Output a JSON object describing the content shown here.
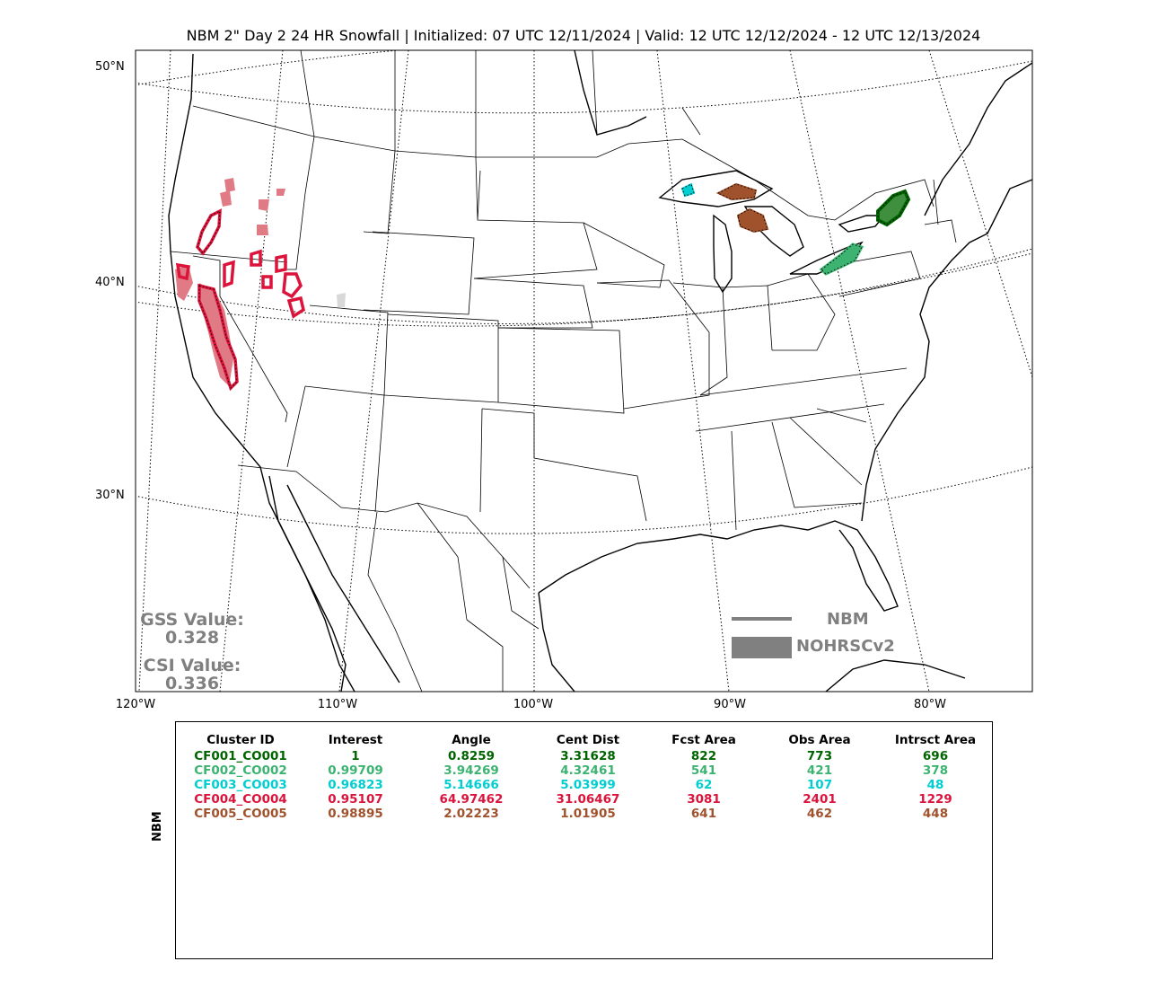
{
  "title": "NBM 2\" Day 2 24 HR Snowfall | Initialized: 07 UTC 12/11/2024 | Valid: 12 UTC 12/12/2024 - 12 UTC 12/13/2024",
  "lat_labels": [
    "50°N",
    "40°N",
    "30°N"
  ],
  "lon_labels": [
    "120°W",
    "110°W",
    "100°W",
    "90°W",
    "80°W"
  ],
  "scores": {
    "gss_label": "GSS Value:",
    "gss_value": "0.328",
    "csi_label": "CSI Value:",
    "csi_value": "0.336"
  },
  "legend": {
    "line_label": "NBM",
    "patch_label": "NOHRSCv2",
    "color": "#808080"
  },
  "table": {
    "row_label": "NBM",
    "headers": [
      "Cluster ID",
      "Interest",
      "Angle",
      "Cent Dist",
      "Fcst Area",
      "Obs Area",
      "Intrsct Area"
    ],
    "rows": [
      {
        "color": "#006400",
        "cells": [
          "CF001_CO001",
          "1",
          "0.8259",
          "3.31628",
          "822",
          "773",
          "696"
        ]
      },
      {
        "color": "#3cb371",
        "cells": [
          "CF002_CO002",
          "0.99709",
          "3.94269",
          "4.32461",
          "541",
          "421",
          "378"
        ]
      },
      {
        "color": "#00ced1",
        "cells": [
          "CF003_CO003",
          "0.96823",
          "5.14666",
          "5.03999",
          "62",
          "107",
          "48"
        ]
      },
      {
        "color": "#dc143c",
        "cells": [
          "CF004_CO004",
          "0.95107",
          "64.97462",
          "31.06467",
          "3081",
          "2401",
          "1229"
        ]
      },
      {
        "color": "#a0522d",
        "cells": [
          "CF005_CO005",
          "0.98895",
          "2.02223",
          "1.01905",
          "641",
          "462",
          "448"
        ]
      }
    ]
  },
  "clusters": {
    "cf001_color": "#006400",
    "cf002_color": "#3cb371",
    "cf003_color": "#00ced1",
    "cf004_color": "#dc143c",
    "cf004_obs_color": "#e07a85",
    "cf005_color": "#a0522d",
    "unmatched_color": "#d8d8d8"
  }
}
